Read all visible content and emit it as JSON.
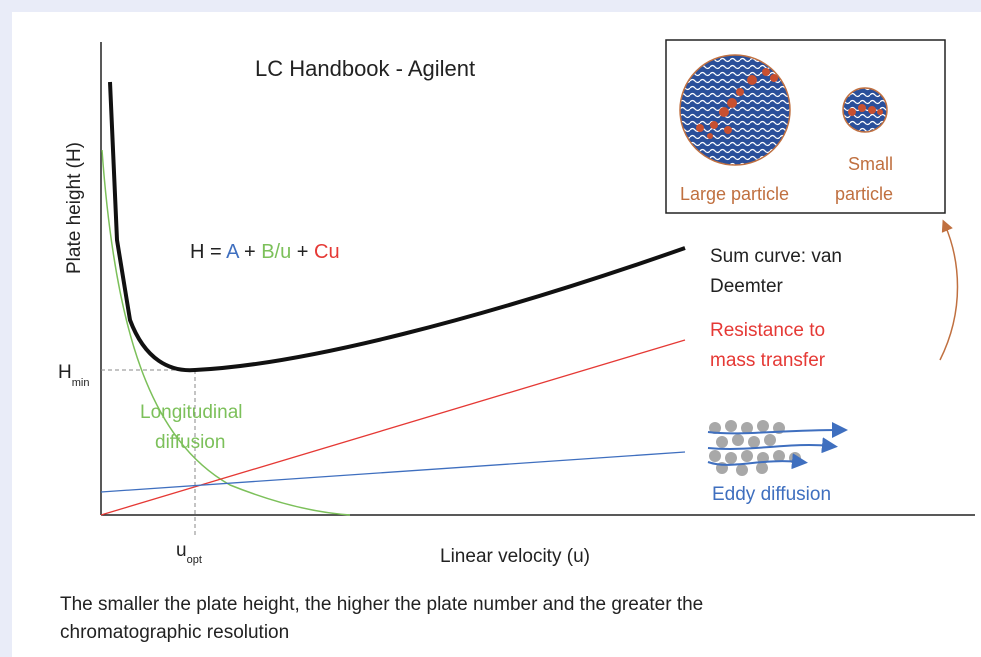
{
  "title": "LC Handbook - Agilent",
  "y_axis_label": "Plate height  (H)",
  "x_axis_label": "Linear velocity (u)",
  "equation": {
    "h": "H = ",
    "a": "A",
    "plus1": " + ",
    "b": "B/u",
    "plus2": " + ",
    "c": "Cu"
  },
  "h_min": {
    "main": "H",
    "sub": "min"
  },
  "u_opt": {
    "main": "u",
    "sub": "opt"
  },
  "curves": {
    "sum": [
      "Sum curve: van",
      "Deemter"
    ],
    "mass_transfer": [
      "Resistance to",
      "mass transfer"
    ],
    "longitudinal": [
      "Longitudinal",
      "diffusion"
    ],
    "eddy": "Eddy diffusion"
  },
  "inset": {
    "large": "Large particle",
    "small": [
      "Small",
      "particle"
    ]
  },
  "caption": [
    "The smaller the plate height, the higher the plate number and the greater the",
    "chromatographic resolution"
  ]
}
